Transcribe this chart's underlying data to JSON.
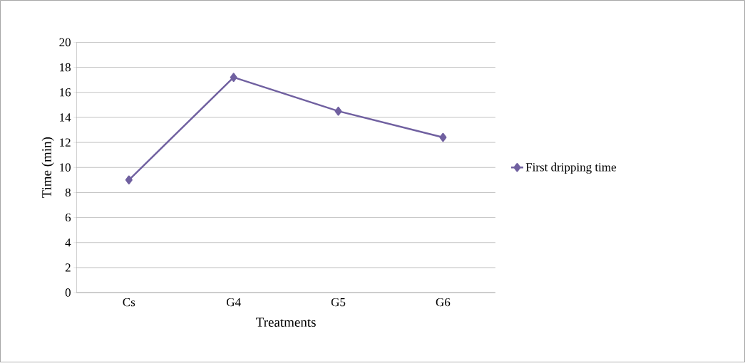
{
  "chart_data": {
    "type": "line",
    "xlabel": "Treatments",
    "ylabel": "Time (min)",
    "categories": [
      "Cs",
      "G4",
      "G5",
      "G6"
    ],
    "series": [
      {
        "name": "First dripping time",
        "color": "#7060a0",
        "values": [
          9.0,
          17.2,
          14.5,
          12.4
        ]
      }
    ],
    "ylim": [
      0,
      20
    ],
    "yticks": [
      0,
      2,
      4,
      6,
      8,
      10,
      12,
      14,
      16,
      18,
      20
    ],
    "grid": "y",
    "legend": "right",
    "marker": "diamond",
    "line_style": "solid"
  }
}
